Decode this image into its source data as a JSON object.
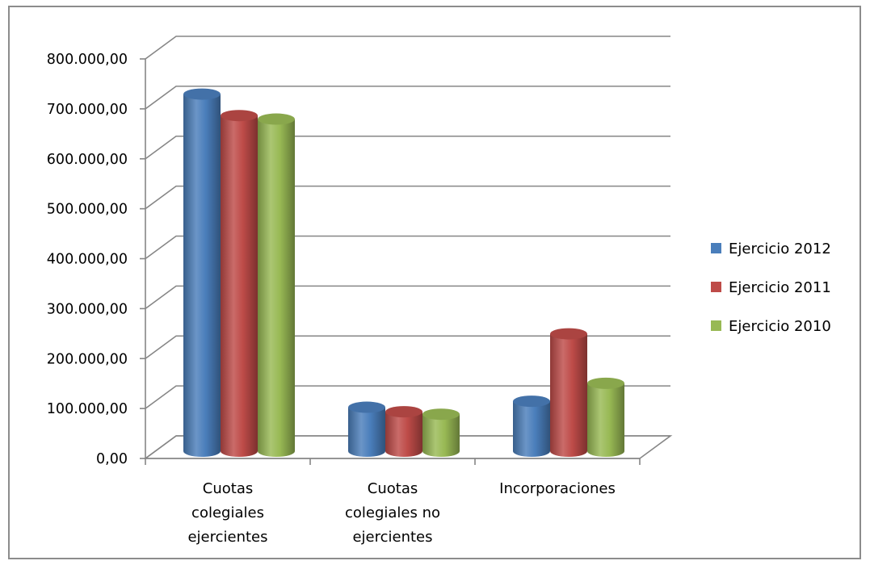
{
  "chart_data": {
    "type": "bar",
    "style": "3d-cylinder",
    "categories": [
      [
        "Cuotas",
        "colegiales",
        "ejercientes"
      ],
      [
        "Cuotas",
        "colegiales no",
        "ejercientes"
      ],
      [
        "Incorporaciones"
      ]
    ],
    "series": [
      {
        "name": "Ejercicio 2012",
        "color": "#4a7ebb",
        "values": [
          715000,
          88000,
          100000
        ]
      },
      {
        "name": "Ejercicio 2011",
        "color": "#be4b48",
        "values": [
          672000,
          79000,
          235000
        ]
      },
      {
        "name": "Ejercicio 2010",
        "color": "#98b954",
        "values": [
          665000,
          74000,
          136000
        ]
      }
    ],
    "yticks": [
      "0,00",
      "100.000,00",
      "200.000,00",
      "300.000,00",
      "400.000,00",
      "500.000,00",
      "600.000,00",
      "700.000,00",
      "800.000,00"
    ],
    "ylim": [
      0,
      800000
    ],
    "grid": true,
    "legend_position": "right"
  }
}
